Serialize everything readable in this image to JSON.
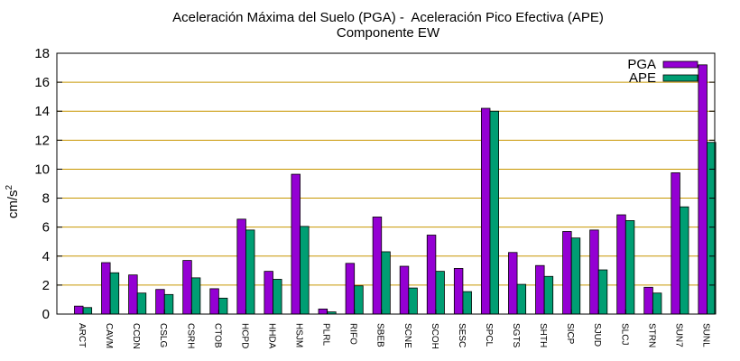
{
  "chart_data": {
    "type": "bar",
    "title_line1": "Aceleración Máxima del Suelo (PGA) -  Aceleración Pico Efectiva (APE)",
    "title_line2": "Componente EW",
    "ylabel": "cm/s",
    "ylabel_sup": "2",
    "ylim": [
      0,
      18
    ],
    "yticks": [
      "0",
      "2",
      "4",
      "6",
      "8",
      "10",
      "12",
      "14",
      "16",
      "18"
    ],
    "grid": "horizontal",
    "legend_position": "top-right",
    "categories": [
      "ARCT",
      "CAVM",
      "CCDN",
      "CSLG",
      "CSRH",
      "CTOB",
      "HCPD",
      "HHDA",
      "HSJM",
      "PLRL",
      "RIFO",
      "SBEB",
      "SCNE",
      "SCOH",
      "SESC",
      "SPCL",
      "SGTS",
      "SHTH",
      "SICP",
      "SJUD",
      "SLCJ",
      "STRN",
      "SUN7",
      "SUNL"
    ],
    "series": [
      {
        "name": "PGA",
        "color": "#9400d3",
        "values": [
          0.55,
          3.55,
          2.7,
          1.7,
          3.7,
          1.75,
          6.55,
          2.95,
          9.65,
          0.35,
          3.5,
          6.7,
          3.3,
          5.45,
          3.15,
          14.2,
          4.25,
          3.35,
          5.7,
          5.8,
          6.85,
          1.85,
          9.75,
          17.2
        ]
      },
      {
        "name": "APE",
        "color": "#009e73",
        "values": [
          0.45,
          2.85,
          1.45,
          1.35,
          2.5,
          1.1,
          5.8,
          2.4,
          6.05,
          0.15,
          1.95,
          4.3,
          1.8,
          2.95,
          1.55,
          14.0,
          2.05,
          2.6,
          5.25,
          3.05,
          6.45,
          1.45,
          7.4,
          11.85
        ]
      }
    ]
  }
}
